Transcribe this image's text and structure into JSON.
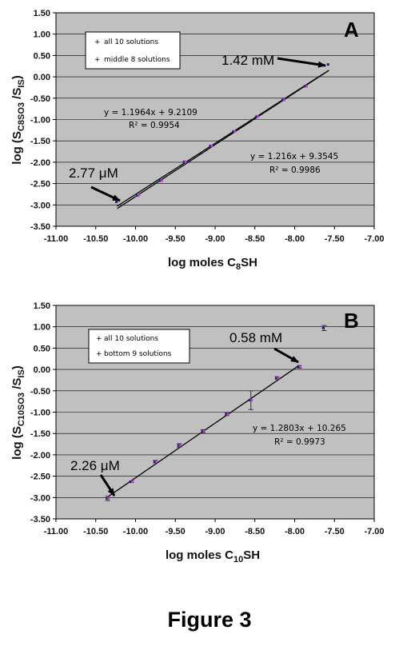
{
  "chart_data": [
    {
      "type": "scatter",
      "panel": "A",
      "xlabel_main": "log moles C",
      "xlabel_sub": "8",
      "xlabel_end": "SH",
      "ylabel_main": "log (S",
      "ylabel_sub": "C8SO3",
      "ylabel_end": " /S",
      "ylabel_sub2": "IS",
      "ylabel_close": ")",
      "xlim": [
        -11.0,
        -7.0
      ],
      "ylim": [
        -3.5,
        1.5
      ],
      "xticks": [
        "-11.00",
        "-10.50",
        "-10.00",
        "-9.50",
        "-9.00",
        "-8.50",
        "-8.00",
        "-7.50",
        "-7.00"
      ],
      "yticks": [
        "1.50",
        "1.00",
        "0.50",
        "0.00",
        "-0.50",
        "-1.00",
        "-1.50",
        "-2.00",
        "-2.50",
        "-3.00",
        "-3.50"
      ],
      "legend": [
        "all 10 solutions",
        "middle 8 solutions"
      ],
      "series": [
        {
          "name": "all 10 solutions",
          "color": "#1a1a8a",
          "x": [
            -10.23,
            -9.97,
            -9.68,
            -9.38,
            -9.05,
            -8.76,
            -8.47,
            -8.14,
            -7.86,
            -7.57
          ],
          "y": [
            -2.93,
            -2.78,
            -2.43,
            -1.99,
            -1.62,
            -1.28,
            -0.93,
            -0.54,
            -0.22,
            0.29
          ]
        },
        {
          "name": "middle 8 solutions",
          "color": "#cc33cc",
          "x": [
            -9.97,
            -9.68,
            -9.38,
            -9.05,
            -8.76,
            -8.47,
            -8.14,
            -7.86
          ],
          "y": [
            -2.78,
            -2.43,
            -1.99,
            -1.62,
            -1.28,
            -0.93,
            -0.54,
            -0.22
          ]
        }
      ],
      "fit_lines": [
        {
          "slope": 1.1964,
          "intercept": 9.2109,
          "x_range": [
            -10.23,
            -7.57
          ]
        },
        {
          "slope": 1.216,
          "intercept": 9.3545,
          "x_range": [
            -10.23,
            -7.57
          ]
        }
      ],
      "equations": [
        {
          "eq": "y = 1.1964x + 9.2109",
          "r2": "R² = 0.9954"
        },
        {
          "eq": "y = 1.216x + 9.3545",
          "r2": "R² = 0.9986"
        }
      ],
      "annotations": [
        {
          "text": "1.42 mM",
          "x": -7.57,
          "y": 0.29
        },
        {
          "text": "2.77 μM",
          "x": -10.23,
          "y": -2.93
        }
      ]
    },
    {
      "type": "scatter",
      "panel": "B",
      "xlabel_main": "log moles C",
      "xlabel_sub": "10",
      "xlabel_end": "SH",
      "ylabel_main": "log (S",
      "ylabel_sub": "C10SO3",
      "ylabel_end": " /S",
      "ylabel_sub2": "IS",
      "ylabel_close": ")",
      "xlim": [
        -11.0,
        -7.0
      ],
      "ylim": [
        -3.5,
        1.5
      ],
      "xticks": [
        "-11.00",
        "-10.50",
        "-10.00",
        "-9.50",
        "-9.00",
        "-8.50",
        "-8.00",
        "-7.50",
        "-7.00"
      ],
      "yticks": [
        "1.50",
        "1.00",
        "0.50",
        "0.00",
        "-0.50",
        "-1.00",
        "-1.50",
        "-2.00",
        "-2.50",
        "-3.00",
        "-3.50"
      ],
      "legend": [
        "all 10 solutions",
        "bottom 9 solutions"
      ],
      "series": [
        {
          "name": "all 10 solutions",
          "color": "#1a1a8a",
          "x": [
            -10.35,
            -10.05,
            -9.75,
            -9.45,
            -9.15,
            -8.85,
            -8.55,
            -8.22,
            -7.94,
            -7.63
          ],
          "y": [
            -3.02,
            -2.63,
            -2.16,
            -1.78,
            -1.45,
            -1.05,
            -0.72,
            -0.2,
            0.06,
            0.97
          ],
          "err": [
            0.05,
            0.02,
            0.03,
            0.04,
            0.04,
            0.03,
            0.22,
            0.03,
            0.03,
            0.06
          ]
        },
        {
          "name": "bottom 9 solutions",
          "color": "#cc33cc",
          "x": [
            -10.35,
            -10.05,
            -9.75,
            -9.45,
            -9.15,
            -8.85,
            -8.55,
            -8.22,
            -7.94
          ],
          "y": [
            -3.02,
            -2.63,
            -2.16,
            -1.78,
            -1.45,
            -1.05,
            -0.72,
            -0.2,
            0.06
          ]
        }
      ],
      "fit_lines": [
        {
          "slope": 1.2803,
          "intercept": 10.265,
          "x_range": [
            -10.35,
            -7.94
          ]
        }
      ],
      "equations": [
        {
          "eq": "y = 1.2803x + 10.265",
          "r2": "R² = 0.9973"
        }
      ],
      "annotations": [
        {
          "text": "0.58 mM",
          "x": -7.94,
          "y": 0.06
        },
        {
          "text": "2.26 μM",
          "x": -10.35,
          "y": -3.02
        }
      ]
    }
  ],
  "figure_title": "Figure 3"
}
